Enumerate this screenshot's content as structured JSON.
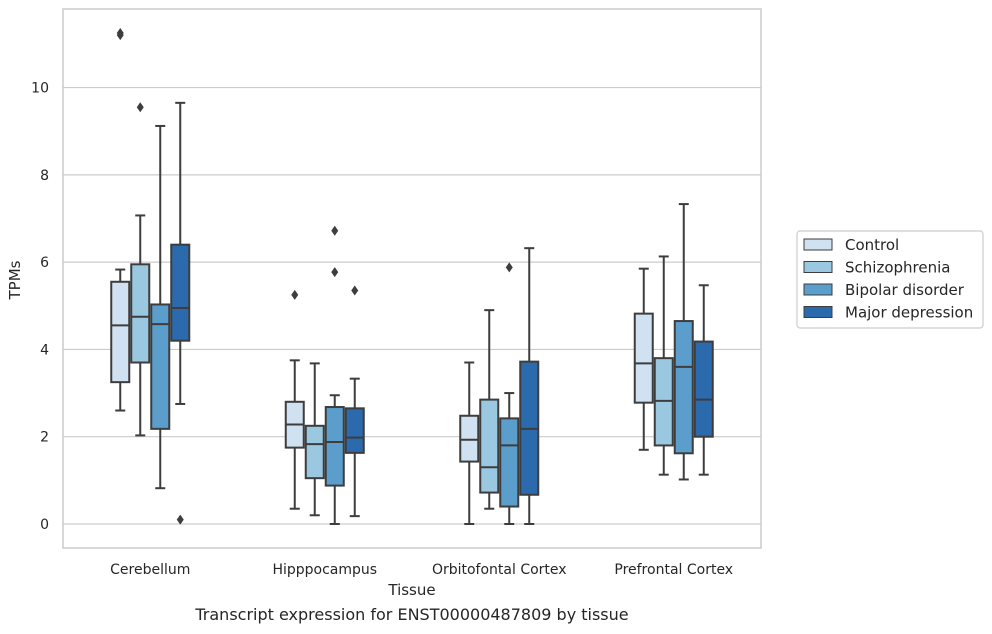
{
  "chart_data": {
    "type": "box",
    "caption": "Transcript expression for ENST00000487809 by tissue",
    "xlabel": "Tissue",
    "ylabel": "TPMs",
    "ylim": [
      -0.55,
      11.8
    ],
    "yticks": [
      0,
      2,
      4,
      6,
      8,
      10
    ],
    "grid": "horizontal",
    "legend_position": "right",
    "categories": [
      "Cerebellum",
      "Hipppocampus",
      "Orbitofontal Cortex",
      "Prefrontal Cortex"
    ],
    "series": [
      {
        "name": "Control",
        "color": "#d0e1f2",
        "boxes": [
          {
            "whislo": 2.6,
            "q1": 3.25,
            "med": 4.55,
            "q3": 5.55,
            "whishi": 5.83,
            "fliers": [
              11.2,
              11.25
            ]
          },
          {
            "whislo": 0.35,
            "q1": 1.75,
            "med": 2.28,
            "q3": 2.8,
            "whishi": 3.75,
            "fliers": [
              5.25
            ]
          },
          {
            "whislo": 0.0,
            "q1": 1.43,
            "med": 1.93,
            "q3": 2.48,
            "whishi": 3.7,
            "fliers": []
          },
          {
            "whislo": 1.7,
            "q1": 2.78,
            "med": 3.68,
            "q3": 4.82,
            "whishi": 5.85,
            "fliers": []
          }
        ]
      },
      {
        "name": "Schizophrenia",
        "color": "#9ac8e0",
        "boxes": [
          {
            "whislo": 2.03,
            "q1": 3.7,
            "med": 4.75,
            "q3": 5.95,
            "whishi": 7.07,
            "fliers": [
              9.55
            ]
          },
          {
            "whislo": 0.2,
            "q1": 1.05,
            "med": 1.83,
            "q3": 2.25,
            "whishi": 3.68,
            "fliers": []
          },
          {
            "whislo": 0.35,
            "q1": 0.72,
            "med": 1.3,
            "q3": 2.85,
            "whishi": 4.9,
            "fliers": []
          },
          {
            "whislo": 1.13,
            "q1": 1.8,
            "med": 2.82,
            "q3": 3.8,
            "whishi": 6.13,
            "fliers": []
          }
        ]
      },
      {
        "name": "Bipolar disorder",
        "color": "#5b9ecb",
        "boxes": [
          {
            "whislo": 0.82,
            "q1": 2.18,
            "med": 4.58,
            "q3": 5.03,
            "whishi": 9.12,
            "fliers": []
          },
          {
            "whislo": 0.0,
            "q1": 0.88,
            "med": 1.88,
            "q3": 2.68,
            "whishi": 2.95,
            "fliers": [
              5.77,
              6.72
            ]
          },
          {
            "whislo": 0.0,
            "q1": 0.4,
            "med": 1.8,
            "q3": 2.42,
            "whishi": 3.0,
            "fliers": [
              5.88
            ]
          },
          {
            "whislo": 1.02,
            "q1": 1.62,
            "med": 3.6,
            "q3": 4.65,
            "whishi": 7.33,
            "fliers": []
          }
        ]
      },
      {
        "name": "Major depression",
        "color": "#2b6aad",
        "boxes": [
          {
            "whislo": 2.75,
            "q1": 4.2,
            "med": 4.95,
            "q3": 6.4,
            "whishi": 9.65,
            "fliers": [
              0.1
            ]
          },
          {
            "whislo": 0.18,
            "q1": 1.63,
            "med": 1.98,
            "q3": 2.65,
            "whishi": 3.33,
            "fliers": [
              5.35
            ]
          },
          {
            "whislo": 0.0,
            "q1": 0.67,
            "med": 2.18,
            "q3": 3.72,
            "whishi": 6.32,
            "fliers": []
          },
          {
            "whislo": 1.13,
            "q1": 2.0,
            "med": 2.85,
            "q3": 4.18,
            "whishi": 5.47,
            "fliers": []
          }
        ]
      }
    ]
  }
}
